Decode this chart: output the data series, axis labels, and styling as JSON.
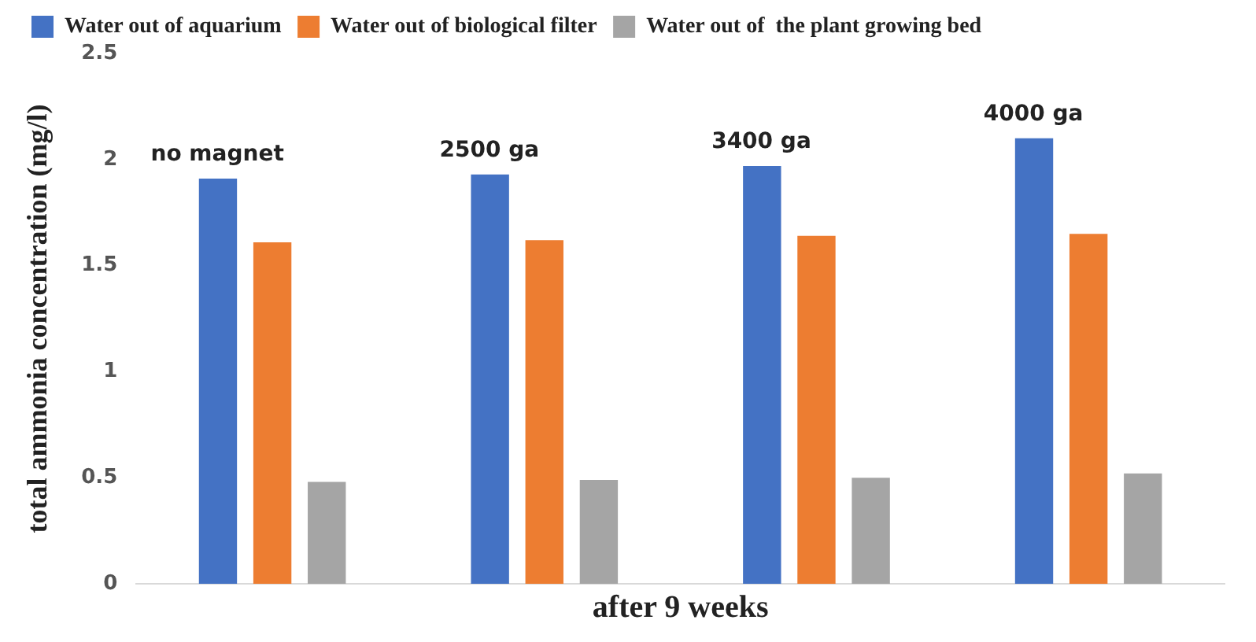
{
  "chart_data": {
    "type": "bar",
    "categories": [
      "no magnet",
      "2500 ga",
      "3400 ga",
      "4000 ga"
    ],
    "xlabel": "after 9 weeks",
    "ylabel": "total ammonia concentration (mg/l)",
    "series": [
      {
        "name": "Water out of aquarium",
        "color": "#4472c4",
        "values": [
          1.91,
          1.93,
          1.97,
          2.1
        ]
      },
      {
        "name": "Water out of biological filter",
        "color": "#ed7d31",
        "values": [
          1.61,
          1.62,
          1.64,
          1.65
        ]
      },
      {
        "name": "Water out of  the plant growing bed",
        "color": "#a5a5a5",
        "values": [
          0.48,
          0.49,
          0.5,
          0.52
        ]
      }
    ],
    "ylim": [
      0,
      2.5
    ],
    "yticks": [
      0,
      0.5,
      1,
      1.5,
      2,
      2.5
    ],
    "grid": false,
    "legend": "top"
  }
}
